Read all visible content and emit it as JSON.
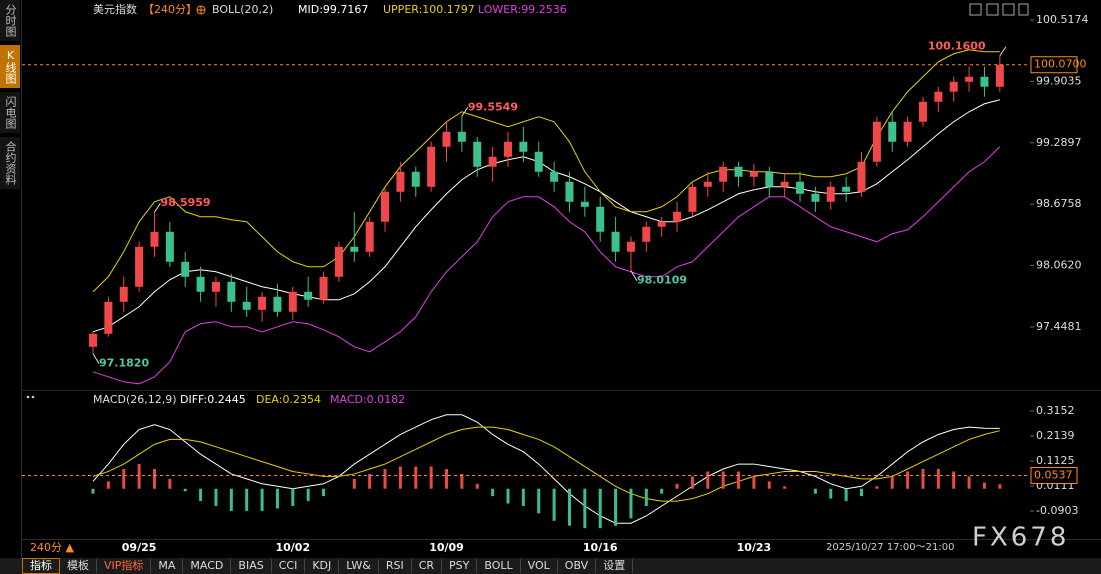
{
  "chart_data": [
    {
      "type": "candlestick",
      "title": "美元指数",
      "period": "【240分】",
      "indicator": "BOLL(20,2)",
      "categories": [
        null,
        null,
        null,
        "09/25",
        null,
        null,
        null,
        null,
        null,
        null,
        null,
        null,
        null,
        "10/02",
        null,
        null,
        null,
        null,
        null,
        null,
        null,
        null,
        null,
        "10/09",
        null,
        null,
        null,
        null,
        null,
        null,
        null,
        null,
        null,
        "10/16",
        null,
        null,
        null,
        null,
        null,
        null,
        null,
        null,
        null,
        "10/23",
        null,
        null,
        null,
        null,
        null,
        null,
        null,
        null,
        null,
        null,
        null,
        null,
        null,
        null,
        null,
        null
      ],
      "open": [
        97.25,
        97.38,
        97.7,
        97.85,
        98.25,
        98.4,
        98.1,
        97.95,
        97.8,
        97.9,
        97.7,
        97.62,
        97.75,
        97.6,
        97.8,
        97.72,
        97.95,
        98.25,
        98.2,
        98.5,
        98.8,
        99.0,
        98.85,
        99.25,
        99.4,
        99.3,
        99.05,
        99.15,
        99.3,
        99.2,
        99.0,
        98.9,
        98.7,
        98.65,
        98.4,
        98.2,
        98.3,
        98.45,
        98.5,
        98.6,
        98.85,
        98.9,
        99.05,
        98.95,
        99.0,
        98.85,
        98.9,
        98.78,
        98.7,
        98.85,
        98.8,
        99.1,
        99.5,
        99.3,
        99.5,
        99.7,
        99.8,
        99.9,
        99.95,
        99.85
      ],
      "high": [
        97.4,
        97.75,
        97.95,
        98.3,
        98.5959,
        98.5,
        98.2,
        98.05,
        97.95,
        97.98,
        97.85,
        97.8,
        97.88,
        97.85,
        97.95,
        98.0,
        98.3,
        98.6,
        98.55,
        98.85,
        99.1,
        99.05,
        99.3,
        99.5,
        99.5549,
        99.35,
        99.25,
        99.4,
        99.45,
        99.3,
        99.1,
        99.0,
        98.85,
        98.75,
        98.55,
        98.35,
        98.5,
        98.55,
        98.7,
        98.9,
        99.0,
        99.1,
        99.1,
        99.08,
        99.05,
        98.98,
        99.0,
        98.85,
        98.9,
        98.95,
        99.2,
        99.55,
        99.6,
        99.55,
        99.75,
        99.85,
        99.95,
        100.05,
        100.05,
        100.16
      ],
      "low": [
        97.182,
        97.35,
        97.6,
        97.8,
        98.15,
        98.05,
        97.85,
        97.7,
        97.65,
        97.6,
        97.55,
        97.5,
        97.55,
        97.52,
        97.65,
        97.68,
        97.9,
        98.1,
        98.15,
        98.4,
        98.7,
        98.75,
        98.8,
        99.1,
        99.2,
        98.95,
        98.9,
        99.05,
        99.1,
        98.95,
        98.8,
        98.6,
        98.55,
        98.3,
        98.1,
        98.0109,
        98.2,
        98.35,
        98.4,
        98.55,
        98.75,
        98.8,
        98.85,
        98.85,
        98.75,
        98.75,
        98.7,
        98.6,
        98.62,
        98.7,
        98.75,
        99.05,
        99.2,
        99.25,
        99.45,
        99.6,
        99.7,
        99.8,
        99.75,
        99.8
      ],
      "close": [
        97.38,
        97.7,
        97.85,
        98.25,
        98.4,
        98.1,
        97.95,
        97.8,
        97.9,
        97.7,
        97.62,
        97.75,
        97.6,
        97.8,
        97.72,
        97.95,
        98.25,
        98.2,
        98.5,
        98.8,
        99.0,
        98.85,
        99.25,
        99.4,
        99.3,
        99.05,
        99.15,
        99.3,
        99.2,
        99.0,
        98.9,
        98.7,
        98.65,
        98.4,
        98.2,
        98.3,
        98.45,
        98.5,
        98.6,
        98.85,
        98.9,
        99.05,
        98.95,
        99.0,
        98.85,
        98.9,
        98.78,
        98.7,
        98.85,
        98.8,
        99.1,
        99.5,
        99.3,
        99.5,
        99.7,
        99.8,
        99.9,
        99.95,
        99.85,
        100.07
      ],
      "up_color": "#f0484a",
      "down_color": "#3cc08c",
      "series": [
        {
          "name": "MID:99.7167",
          "color": "#ffffff",
          "values": [
            97.4,
            97.45,
            97.55,
            97.65,
            97.8,
            97.92,
            98.0,
            98.02,
            98.0,
            97.95,
            97.9,
            97.85,
            97.82,
            97.78,
            97.75,
            97.72,
            97.72,
            97.78,
            97.9,
            98.05,
            98.25,
            98.45,
            98.62,
            98.78,
            98.92,
            99.02,
            99.08,
            99.12,
            99.15,
            99.1,
            99.0,
            98.95,
            98.88,
            98.8,
            98.7,
            98.6,
            98.55,
            98.5,
            98.5,
            98.55,
            98.62,
            98.7,
            98.78,
            98.82,
            98.85,
            98.85,
            98.83,
            98.8,
            98.78,
            98.78,
            98.8,
            98.88,
            99.0,
            99.12,
            99.25,
            99.38,
            99.5,
            99.6,
            99.68,
            99.72
          ]
        },
        {
          "name": "UPPER:100.1797",
          "color": "#e6d200",
          "values": [
            97.8,
            97.95,
            98.2,
            98.5,
            98.7,
            98.75,
            98.6,
            98.55,
            98.55,
            98.52,
            98.5,
            98.35,
            98.2,
            98.1,
            98.05,
            98.05,
            98.15,
            98.35,
            98.6,
            98.85,
            99.05,
            99.2,
            99.35,
            99.5,
            99.6,
            99.55,
            99.5,
            99.45,
            99.5,
            99.55,
            99.5,
            99.3,
            99.0,
            98.8,
            98.65,
            98.6,
            98.6,
            98.65,
            98.75,
            98.9,
            98.98,
            99.02,
            99.02,
            99.0,
            99.0,
            98.98,
            98.98,
            98.95,
            98.95,
            98.98,
            99.05,
            99.35,
            99.6,
            99.8,
            99.95,
            100.1,
            100.18,
            100.22,
            100.2,
            100.2
          ]
        },
        {
          "name": "LOWER:99.2536",
          "color": "#e040e0",
          "values": [
            97.0,
            96.95,
            96.9,
            96.88,
            96.95,
            97.1,
            97.4,
            97.48,
            97.5,
            97.45,
            97.45,
            97.4,
            97.45,
            97.5,
            97.48,
            97.42,
            97.35,
            97.25,
            97.2,
            97.3,
            97.4,
            97.55,
            97.8,
            98.0,
            98.15,
            98.3,
            98.55,
            98.7,
            98.75,
            98.75,
            98.65,
            98.5,
            98.4,
            98.2,
            98.05,
            98.0,
            97.95,
            97.95,
            98.05,
            98.1,
            98.25,
            98.4,
            98.55,
            98.65,
            98.75,
            98.75,
            98.65,
            98.55,
            98.45,
            98.4,
            98.35,
            98.3,
            98.38,
            98.42,
            98.55,
            98.7,
            98.85,
            99.0,
            99.1,
            99.25
          ]
        }
      ],
      "annotations": [
        {
          "label": "100.1600",
          "value": 100.16
        },
        {
          "label": "99.5549",
          "value": 99.5549
        },
        {
          "label": "98.5959",
          "value": 98.5959
        },
        {
          "label": "98.0109",
          "value": 98.0109
        },
        {
          "label": "97.1820",
          "value": 97.182
        }
      ],
      "last_price": {
        "value": 100.07,
        "label": "100.0700"
      },
      "ylim": [
        96.868,
        100.5174
      ],
      "yticks": [
        100.5174,
        99.9035,
        99.2897,
        98.6758,
        {
          "value": 98.062,
          "label": "98.0620"
        },
        97.4481
      ],
      "grid": false
    },
    {
      "type": "macd",
      "title": "MACD(26,12,9)",
      "series": [
        {
          "name": "DIFF:0.2445",
          "color": "#ffffff",
          "style": "line",
          "values": [
            0.03,
            0.1,
            0.18,
            0.24,
            0.26,
            0.24,
            0.19,
            0.14,
            0.1,
            0.06,
            0.04,
            0.02,
            0.01,
            0.0,
            0.01,
            0.02,
            0.05,
            0.1,
            0.14,
            0.18,
            0.22,
            0.25,
            0.28,
            0.3,
            0.3,
            0.27,
            0.22,
            0.18,
            0.15,
            0.1,
            0.04,
            -0.02,
            -0.07,
            -0.11,
            -0.14,
            -0.14,
            -0.11,
            -0.07,
            -0.03,
            0.01,
            0.05,
            0.08,
            0.1,
            0.1,
            0.09,
            0.08,
            0.07,
            0.05,
            0.02,
            0.0,
            0.01,
            0.05,
            0.1,
            0.15,
            0.19,
            0.22,
            0.24,
            0.25,
            0.245,
            0.2445
          ]
        },
        {
          "name": "DEA:0.2354",
          "color": "#e6d200",
          "style": "line",
          "values": [
            0.05,
            0.07,
            0.1,
            0.14,
            0.18,
            0.2,
            0.2,
            0.19,
            0.17,
            0.15,
            0.13,
            0.11,
            0.09,
            0.07,
            0.06,
            0.05,
            0.05,
            0.06,
            0.08,
            0.1,
            0.13,
            0.16,
            0.19,
            0.22,
            0.24,
            0.25,
            0.25,
            0.24,
            0.22,
            0.2,
            0.17,
            0.13,
            0.09,
            0.05,
            0.01,
            -0.02,
            -0.04,
            -0.05,
            -0.05,
            -0.04,
            -0.02,
            0.01,
            0.03,
            0.05,
            0.06,
            0.07,
            0.07,
            0.07,
            0.06,
            0.05,
            0.04,
            0.04,
            0.05,
            0.08,
            0.11,
            0.14,
            0.17,
            0.2,
            0.22,
            0.2354
          ]
        },
        {
          "name": "MACD:0.0182",
          "color": "#e040e0",
          "style": "histogram",
          "up_color": "#e84a4a",
          "down_color": "#3cbf8f",
          "values": [
            -0.02,
            0.03,
            0.08,
            0.1,
            0.08,
            0.04,
            -0.01,
            -0.05,
            -0.07,
            -0.09,
            -0.09,
            -0.09,
            -0.08,
            -0.07,
            -0.05,
            -0.03,
            0.0,
            0.04,
            0.06,
            0.08,
            0.09,
            0.09,
            0.09,
            0.08,
            0.06,
            0.02,
            -0.03,
            -0.06,
            -0.07,
            -0.1,
            -0.13,
            -0.15,
            -0.16,
            -0.16,
            -0.15,
            -0.12,
            -0.07,
            -0.02,
            0.02,
            0.05,
            0.07,
            0.07,
            0.07,
            0.05,
            0.03,
            0.01,
            0.0,
            -0.02,
            -0.04,
            -0.05,
            -0.03,
            0.01,
            0.05,
            0.07,
            0.08,
            0.08,
            0.07,
            0.05,
            0.025,
            0.0182
          ]
        }
      ],
      "last_value": {
        "value": 0.0537,
        "label": "0.0537"
      },
      "ylim": [
        -0.1876,
        0.3395
      ],
      "yticks": [
        0.3152,
        0.2139,
        0.1125,
        0.0111,
        -0.0903
      ],
      "grid": false
    }
  ],
  "sidebar": [
    "分时图",
    "K线图",
    "闪电图",
    "合约资料"
  ],
  "period_switch": "240分 ▲",
  "time_range": "2025/10/27 17:00～21:00",
  "watermark": "FX678",
  "toolbar": [
    "指标",
    "模板",
    "VIP指标",
    "MA",
    "MACD",
    "BIAS",
    "CCI",
    "KDJ",
    "LW&",
    "RSI",
    "CR",
    "PSY",
    "BOLL",
    "VOL",
    "OBV",
    "设置"
  ]
}
